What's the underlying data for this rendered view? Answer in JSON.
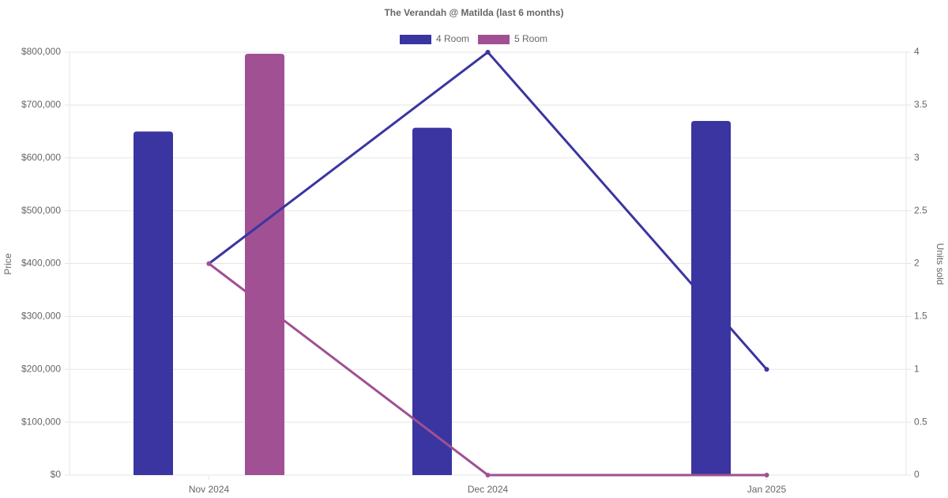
{
  "chart_data": {
    "type": "bar-line",
    "title": "The Verandah @ Matilda (last 6 months)",
    "categories": [
      "Nov 2024",
      "Dec 2024",
      "Jan 2025"
    ],
    "ylabel": "Price",
    "y2label": "Units sold",
    "ylim": [
      0,
      800000
    ],
    "yticks": [
      {
        "value": 0,
        "label": "$0"
      },
      {
        "value": 100000,
        "label": "$100,000"
      },
      {
        "value": 200000,
        "label": "$200,000"
      },
      {
        "value": 300000,
        "label": "$300,000"
      },
      {
        "value": 400000,
        "label": "$400,000"
      },
      {
        "value": 500000,
        "label": "$500,000"
      },
      {
        "value": 600000,
        "label": "$600,000"
      },
      {
        "value": 700000,
        "label": "$700,000"
      },
      {
        "value": 800000,
        "label": "$800,000"
      }
    ],
    "y2lim": [
      0,
      4
    ],
    "y2ticks": [
      0,
      0.5,
      1,
      1.5,
      2,
      2.5,
      3,
      3.5,
      4
    ],
    "grid": true,
    "legend": "top",
    "series": [
      {
        "name": "4 Room",
        "color": "#3a35a0",
        "values": [
          650000,
          657000,
          670000
        ],
        "units": [
          2,
          4,
          1
        ]
      },
      {
        "name": "5 Room",
        "color": "#a05093",
        "values": [
          797000,
          null,
          null
        ],
        "units": [
          2,
          0,
          0
        ]
      }
    ]
  }
}
